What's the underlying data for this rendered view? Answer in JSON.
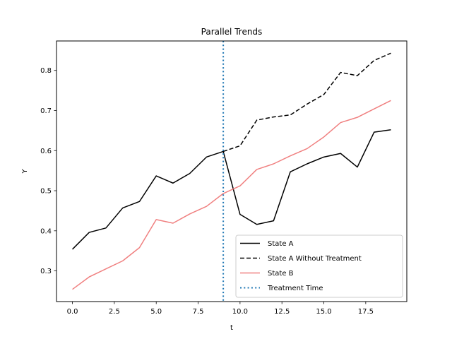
{
  "chart_data": {
    "type": "line",
    "title": "Parallel Trends",
    "xlabel": "t",
    "ylabel": "Y",
    "xlim": [
      -0.95,
      19.95
    ],
    "ylim": [
      0.2235,
      0.8735
    ],
    "xticks": [
      0.0,
      2.5,
      5.0,
      7.5,
      10.0,
      12.5,
      15.0,
      17.5
    ],
    "xtick_labels": [
      "0.0",
      "2.5",
      "5.0",
      "7.5",
      "10.0",
      "12.5",
      "15.0",
      "17.5"
    ],
    "yticks": [
      0.3,
      0.4,
      0.5,
      0.6,
      0.7,
      0.8
    ],
    "ytick_labels": [
      "0.3",
      "0.4",
      "0.5",
      "0.6",
      "0.7",
      "0.8"
    ],
    "grid": false,
    "legend_position": "lower-right",
    "series": [
      {
        "name": "State A",
        "color": "#000000",
        "style": "solid",
        "x": [
          0,
          1,
          2,
          3,
          4,
          5,
          6,
          7,
          8,
          9,
          10,
          11,
          12,
          13,
          14,
          15,
          16,
          17,
          18,
          19
        ],
        "y": [
          0.354,
          0.396,
          0.407,
          0.457,
          0.473,
          0.537,
          0.519,
          0.543,
          0.584,
          0.598,
          0.441,
          0.416,
          0.425,
          0.547,
          0.567,
          0.584,
          0.593,
          0.559,
          0.646,
          0.652
        ]
      },
      {
        "name": "State A Without Treatment",
        "color": "#000000",
        "style": "dashed",
        "x": [
          9,
          10,
          11,
          12,
          13,
          14,
          15,
          16,
          17,
          18,
          19
        ],
        "y": [
          0.598,
          0.612,
          0.676,
          0.684,
          0.689,
          0.716,
          0.74,
          0.795,
          0.787,
          0.825,
          0.843
        ]
      },
      {
        "name": "State B",
        "color": "#f08080",
        "style": "solid",
        "x": [
          0,
          1,
          2,
          3,
          4,
          5,
          6,
          7,
          8,
          9,
          10,
          11,
          12,
          13,
          14,
          15,
          16,
          17,
          18,
          19
        ],
        "y": [
          0.254,
          0.285,
          0.305,
          0.325,
          0.358,
          0.428,
          0.419,
          0.442,
          0.461,
          0.493,
          0.512,
          0.553,
          0.567,
          0.587,
          0.605,
          0.634,
          0.67,
          0.683,
          0.704,
          0.725
        ]
      }
    ],
    "vlines": [
      {
        "name": "Treatment Time",
        "x": 9,
        "color": "#1f77b4",
        "style": "dotted"
      }
    ]
  }
}
